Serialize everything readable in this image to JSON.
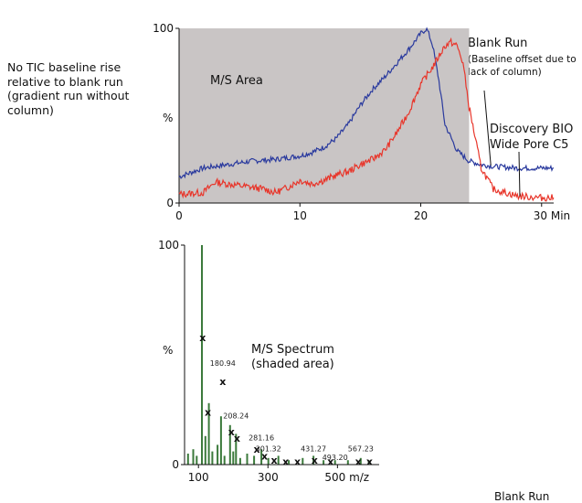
{
  "notes": {
    "left": "No TIC baseline rise relative to blank run (gradient run without column)",
    "blank_title": "Blank Run",
    "blank_sub": "(Baseline offset due to lack of column)",
    "discovery": "Discovery BIO Wide Pore C5",
    "bottom_cut": "Blank Run"
  },
  "colors": {
    "shade": "#c9c5c5",
    "blank": "#2a3a9e",
    "discovery": "#e8362b",
    "spectrum": "#3b7a3b"
  },
  "chart_data": [
    {
      "type": "line",
      "title": "",
      "xlabel": "",
      "ylabel": "%",
      "xlim": [
        0,
        31
      ],
      "ylim": [
        0,
        100
      ],
      "x_ticks": [
        "0",
        "10",
        "20",
        "30 Min"
      ],
      "y_ticks": [
        "0",
        "100"
      ],
      "annotation": "M/S Area",
      "shaded_region": [
        0,
        24
      ],
      "series": [
        {
          "name": "Blank Run",
          "x": [
            0,
            2,
            4,
            6,
            8,
            10,
            11,
            12,
            13,
            14,
            15,
            16,
            17,
            18,
            19,
            20,
            20.5,
            21,
            21.5,
            22,
            23,
            24,
            25,
            26,
            28,
            30,
            31
          ],
          "y": [
            15,
            20,
            22,
            24,
            25,
            27,
            29,
            32,
            37,
            45,
            56,
            65,
            72,
            80,
            88,
            97,
            100,
            90,
            70,
            45,
            30,
            24,
            22,
            21,
            20,
            20,
            20
          ]
        },
        {
          "name": "Discovery BIO Wide Pore C5",
          "x": [
            0,
            2,
            3,
            5,
            7,
            8,
            9,
            10,
            11,
            12,
            13,
            14,
            15,
            16,
            17,
            18,
            19,
            20,
            21,
            22,
            22.5,
            23,
            23.5,
            24,
            25,
            26,
            28,
            30,
            31
          ],
          "y": [
            5,
            6,
            12,
            10,
            8,
            6,
            9,
            13,
            11,
            13,
            16,
            18,
            22,
            25,
            30,
            40,
            52,
            68,
            78,
            90,
            92,
            90,
            80,
            55,
            20,
            8,
            4,
            3,
            3
          ]
        }
      ]
    },
    {
      "type": "bar",
      "title": "",
      "xlabel": "",
      "ylabel": "%",
      "xlim": [
        60,
        620
      ],
      "ylim": [
        0,
        100
      ],
      "x_ticks": [
        "100",
        "300",
        "500 m/z"
      ],
      "y_ticks": [
        "0",
        "100"
      ],
      "annotation": "M/S Spectrum (shaded area)",
      "x": [
        70,
        85,
        95,
        110,
        120,
        130,
        140,
        155,
        165,
        175,
        191,
        200,
        208,
        220,
        240,
        260,
        281,
        301,
        330,
        360,
        400,
        431,
        460,
        493,
        530,
        567,
        590
      ],
      "values": [
        5,
        7,
        4,
        100,
        13,
        28,
        6,
        9,
        22,
        4,
        18,
        6,
        14,
        3,
        5,
        4,
        7,
        3,
        4,
        2,
        3,
        4,
        2,
        2,
        2,
        3,
        2
      ],
      "markers": [
        {
          "x": 112,
          "y": 58
        },
        {
          "x": 127,
          "y": 24
        },
        {
          "x": 170,
          "y": 38
        },
        {
          "x": 195,
          "y": 15
        },
        {
          "x": 211,
          "y": 12
        },
        {
          "x": 268,
          "y": 7
        },
        {
          "x": 290,
          "y": 4
        },
        {
          "x": 318,
          "y": 2
        },
        {
          "x": 351,
          "y": 1.5
        },
        {
          "x": 385,
          "y": 1.5
        },
        {
          "x": 434,
          "y": 2
        },
        {
          "x": 480,
          "y": 1.5
        },
        {
          "x": 560,
          "y": 1.5
        },
        {
          "x": 592,
          "y": 1.5
        }
      ],
      "peak_labels": [
        {
          "x": 170,
          "y": 45,
          "text": "180.94"
        },
        {
          "x": 208,
          "y": 21,
          "text": "208.24"
        },
        {
          "x": 281,
          "y": 11,
          "text": "281.16"
        },
        {
          "x": 301,
          "y": 6,
          "text": "301.32"
        },
        {
          "x": 431,
          "y": 6,
          "text": "431.27"
        },
        {
          "x": 493,
          "y": 2,
          "text": "493.20"
        },
        {
          "x": 567,
          "y": 6,
          "text": "567.23"
        }
      ]
    }
  ]
}
